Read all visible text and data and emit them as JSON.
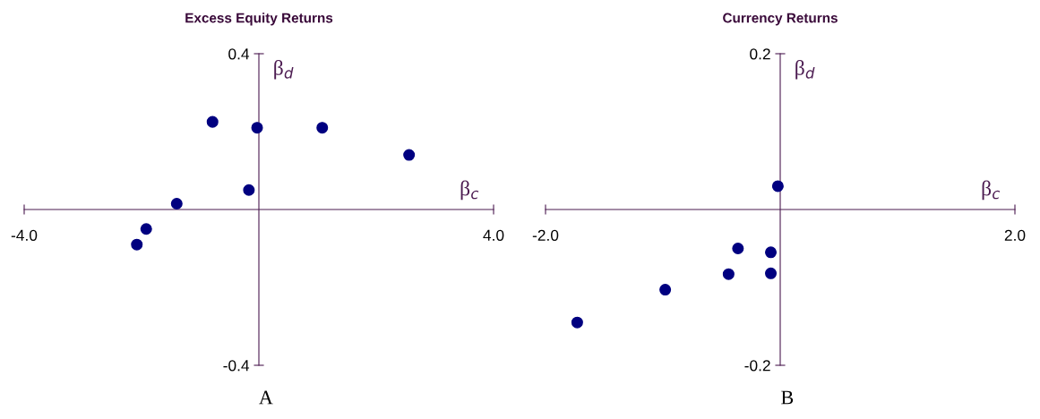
{
  "chart_data": [
    {
      "type": "scatter",
      "title": "Excess Equity Returns",
      "xlabel": "β$_{c}$",
      "ylabel": "β$_{d}$",
      "annotations": [
        "A"
      ],
      "marker": "circle",
      "series": [
        {
          "color": "#000080",
          "x": [
            -0.79,
            -0.03,
            1.08,
            2.56,
            -0.17,
            -1.4,
            -1.92,
            -2.08
          ],
          "values": [
            0.225,
            0.21,
            0.21,
            0.14,
            0.05,
            0.015,
            -0.05,
            -0.09
          ]
        }
      ],
      "xlim": [
        -4,
        4
      ],
      "ylim": [
        -0.4,
        0.4
      ],
      "xticks": [
        {
          "value": -4,
          "label": "-4.0"
        },
        {
          "value": 4,
          "label": "4.0"
        }
      ],
      "yticks": [
        {
          "value": -0.4,
          "label": "-0.4"
        },
        {
          "value": 0.4,
          "label": "0.4"
        }
      ]
    },
    {
      "type": "scatter",
      "title": "Currency Returns",
      "xlabel": "β$_{c}$",
      "ylabel": "β$_{d}$",
      "annotations": [
        "B"
      ],
      "marker": "circle",
      "series": [
        {
          "color": "#000080",
          "x": [
            -0.02,
            -0.36,
            -0.08,
            -0.44,
            -0.08,
            -0.98,
            -1.73
          ],
          "values": [
            0.03,
            -0.05,
            -0.055,
            -0.083,
            -0.082,
            -0.103,
            -0.145
          ]
        }
      ],
      "xlim": [
        -2,
        2
      ],
      "ylim": [
        -0.2,
        0.2
      ],
      "xticks": [
        {
          "value": -2,
          "label": "-2.0"
        },
        {
          "value": 2,
          "label": "2.0"
        }
      ],
      "yticks": [
        {
          "value": -0.2,
          "label": "-0.2"
        },
        {
          "value": 0.2,
          "label": "0.2"
        }
      ]
    }
  ]
}
